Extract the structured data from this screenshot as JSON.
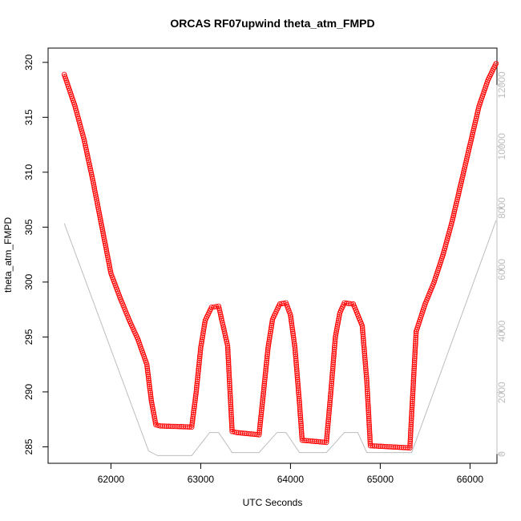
{
  "chart_data": {
    "type": "line",
    "title": "ORCAS RF07upwind theta_atm_FMPD",
    "xlabel": "UTC Seconds",
    "ylabel": "theta_atm_FMPD",
    "xlim": [
      61300,
      66300
    ],
    "ylim": [
      283.5,
      321.3
    ],
    "y2lim": [
      -300,
      13200
    ],
    "x_ticks": [
      "62000",
      "63000",
      "64000",
      "65000",
      "66000"
    ],
    "y_ticks": [
      "285",
      "290",
      "295",
      "300",
      "305",
      "310",
      "315",
      "320"
    ],
    "y2_ticks": [
      "0",
      "2000",
      "4000",
      "6000",
      "8000",
      "10000",
      "12000"
    ],
    "colors": {
      "primary": "#ff0000",
      "secondary": "#bdbdbd"
    },
    "series": [
      {
        "marker": "open-circle",
        "color": "#ff0000",
        "axis": "left",
        "points": [
          [
            61480,
            318.9
          ],
          [
            61600,
            316.0
          ],
          [
            61700,
            313.0
          ],
          [
            61800,
            309.2
          ],
          [
            61900,
            305.0
          ],
          [
            62000,
            300.8
          ],
          [
            62100,
            298.6
          ],
          [
            62200,
            296.6
          ],
          [
            62300,
            294.8
          ],
          [
            62400,
            292.5
          ],
          [
            62450,
            289.2
          ],
          [
            62500,
            287.0
          ],
          [
            62550,
            286.9
          ],
          [
            62900,
            286.8
          ],
          [
            62950,
            290.0
          ],
          [
            63000,
            294.0
          ],
          [
            63050,
            296.5
          ],
          [
            63120,
            297.7
          ],
          [
            63200,
            297.8
          ],
          [
            63300,
            294.2
          ],
          [
            63350,
            286.4
          ],
          [
            63400,
            286.3
          ],
          [
            63650,
            286.1
          ],
          [
            63700,
            290.0
          ],
          [
            63750,
            294.0
          ],
          [
            63800,
            296.6
          ],
          [
            63880,
            298.0
          ],
          [
            63950,
            298.1
          ],
          [
            64000,
            297.0
          ],
          [
            64050,
            294.0
          ],
          [
            64100,
            289.0
          ],
          [
            64130,
            285.6
          ],
          [
            64400,
            285.4
          ],
          [
            64450,
            290.0
          ],
          [
            64500,
            295.0
          ],
          [
            64550,
            297.2
          ],
          [
            64600,
            298.1
          ],
          [
            64700,
            298.0
          ],
          [
            64800,
            296.0
          ],
          [
            64850,
            291.0
          ],
          [
            64890,
            285.1
          ],
          [
            65330,
            284.9
          ],
          [
            65350,
            288.0
          ],
          [
            65400,
            295.5
          ],
          [
            65500,
            298.0
          ],
          [
            65600,
            300.0
          ],
          [
            65700,
            302.5
          ],
          [
            65800,
            305.5
          ],
          [
            65900,
            309.0
          ],
          [
            66000,
            312.5
          ],
          [
            66100,
            316.0
          ],
          [
            66200,
            318.4
          ],
          [
            66290,
            319.9
          ]
        ]
      },
      {
        "marker": "line",
        "color": "#bdbdbd",
        "axis": "right",
        "points": [
          [
            61480,
            7500
          ],
          [
            62420,
            100
          ],
          [
            62520,
            -50
          ],
          [
            62900,
            -50
          ],
          [
            63100,
            700
          ],
          [
            63200,
            700
          ],
          [
            63350,
            50
          ],
          [
            63650,
            50
          ],
          [
            63850,
            700
          ],
          [
            63950,
            700
          ],
          [
            64100,
            50
          ],
          [
            64400,
            50
          ],
          [
            64600,
            700
          ],
          [
            64750,
            700
          ],
          [
            64850,
            50
          ],
          [
            65350,
            50
          ],
          [
            66290,
            7600
          ]
        ]
      }
    ]
  }
}
